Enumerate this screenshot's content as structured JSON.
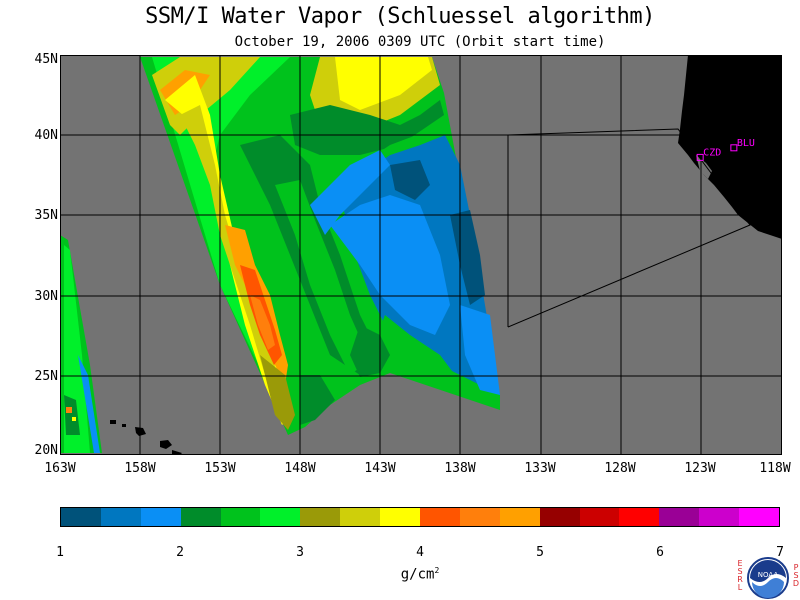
{
  "title": "SSM/I Water Vapor (Schluessel algorithm)",
  "subtitle": "October 19, 2006  0309 UTC  (Orbit start time)",
  "lat_labels": [
    "45N",
    "40N",
    "35N",
    "30N",
    "25N",
    "20N"
  ],
  "lon_labels": [
    "163W",
    "158W",
    "153W",
    "148W",
    "143W",
    "138W",
    "133W",
    "128W",
    "123W",
    "118W"
  ],
  "stations": [
    {
      "code": "CZD",
      "lon": -123.1,
      "lat": 38.6
    },
    {
      "code": "BLU",
      "lon": -121.0,
      "lat": 39.2
    }
  ],
  "colorbar": {
    "colors": [
      "#00527a",
      "#0077c0",
      "#0a8ff5",
      "#008c2a",
      "#00c21c",
      "#00f02a",
      "#9a9a08",
      "#cfcf0a",
      "#ffff00",
      "#ff5500",
      "#ff7f0c",
      "#ffa000",
      "#960000",
      "#cc0000",
      "#ff0000",
      "#9a0096",
      "#cc00cc",
      "#ff00ff"
    ],
    "tick_labels": [
      "1",
      "2",
      "3",
      "4",
      "5",
      "6",
      "7"
    ],
    "units": "g/cm",
    "units_exp": "2"
  },
  "logo": {
    "text": "NOAA",
    "left_vertical": "ESRL",
    "right_vertical": "PSD"
  },
  "map": {
    "lon_range": [
      -163,
      -118
    ],
    "lat_range": [
      20,
      45
    ],
    "background": "#737373",
    "land": "#000000",
    "station_color": "#ff00ff"
  }
}
